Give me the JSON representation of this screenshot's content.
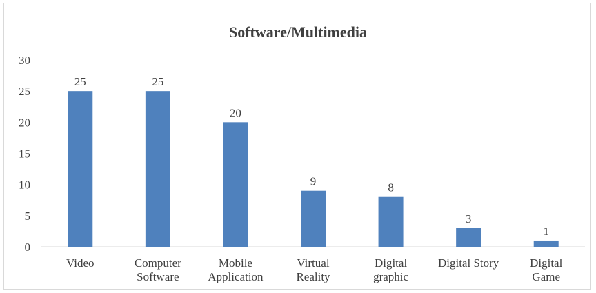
{
  "chart_data": {
    "type": "bar",
    "title": "Software/Multimedia",
    "categories": [
      [
        "Video"
      ],
      [
        "Computer",
        "Software"
      ],
      [
        "Mobile",
        "Application"
      ],
      [
        "Virtual",
        "Reality"
      ],
      [
        "Digital",
        "graphic"
      ],
      [
        "Digital Story"
      ],
      [
        "Digital",
        "Game"
      ]
    ],
    "values": [
      25,
      25,
      20,
      9,
      8,
      3,
      1
    ],
    "ylim": [
      0,
      30
    ],
    "yticks": [
      0,
      5,
      10,
      15,
      20,
      25,
      30
    ],
    "xlabel": "",
    "ylabel": "",
    "grid": false,
    "legend": "none",
    "bar_color": "#4f81bd",
    "data_labels": true
  }
}
